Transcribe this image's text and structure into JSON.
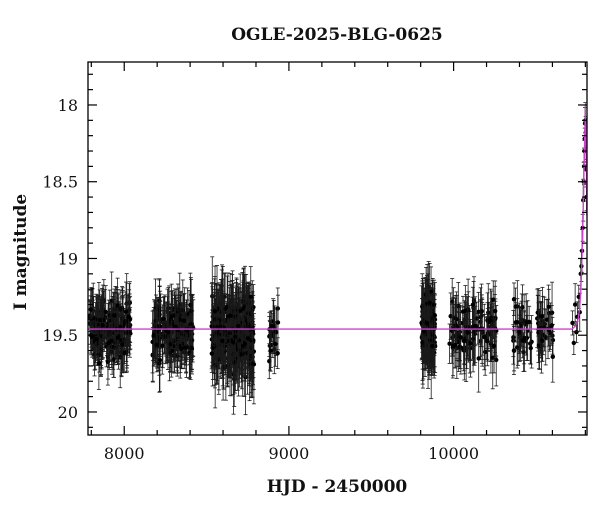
{
  "chart_data": {
    "type": "scatter",
    "title": "OGLE-2025-BLG-0625",
    "xlabel": "HJD - 2450000",
    "ylabel": "I magnitude",
    "xlim": [
      7780,
      10810
    ],
    "ylim": [
      20.15,
      17.72
    ],
    "y_inverted": true,
    "grid": false,
    "x_ticks": [
      8000,
      9000,
      10000
    ],
    "y_ticks": [
      18,
      18.5,
      19,
      19.5,
      20
    ],
    "x_tick_labels": [
      "8000",
      "9000",
      "10000"
    ],
    "y_tick_labels": [
      "18",
      "18.5",
      "19",
      "19.5",
      "20"
    ],
    "baseline_mag": 19.46,
    "model_color": "#d040d0",
    "point_color": "#000000",
    "seasons": [
      {
        "start": 7790,
        "end": 8040,
        "n": 190,
        "mean": 19.47,
        "sigma": 0.08,
        "err_min": 0.1,
        "err_max": 0.2
      },
      {
        "start": 8170,
        "end": 8420,
        "n": 190,
        "mean": 19.47,
        "sigma": 0.08,
        "err_min": 0.1,
        "err_max": 0.22
      },
      {
        "start": 8530,
        "end": 8790,
        "n": 320,
        "mean": 19.48,
        "sigma": 0.11,
        "err_min": 0.12,
        "err_max": 0.28
      },
      {
        "start": 8880,
        "end": 8935,
        "n": 22,
        "mean": 19.52,
        "sigma": 0.07,
        "err_min": 0.1,
        "err_max": 0.18
      },
      {
        "start": 9805,
        "end": 9890,
        "n": 130,
        "mean": 19.46,
        "sigma": 0.1,
        "err_min": 0.12,
        "err_max": 0.26
      },
      {
        "start": 9975,
        "end": 10260,
        "n": 110,
        "mean": 19.47,
        "sigma": 0.08,
        "err_min": 0.1,
        "err_max": 0.22
      },
      {
        "start": 10360,
        "end": 10620,
        "n": 70,
        "mean": 19.45,
        "sigma": 0.08,
        "err_min": 0.1,
        "err_max": 0.2
      }
    ],
    "event": {
      "start": 10720,
      "end": 10808,
      "points": [
        [
          10722,
          19.42
        ],
        [
          10730,
          19.55
        ],
        [
          10738,
          19.3
        ],
        [
          10746,
          19.48
        ],
        [
          10752,
          19.38
        ],
        [
          10760,
          19.25
        ],
        [
          10766,
          19.35
        ],
        [
          10772,
          19.1
        ],
        [
          10776,
          19.05
        ],
        [
          10780,
          18.95
        ],
        [
          10784,
          18.8
        ],
        [
          10787,
          18.62
        ],
        [
          10790,
          18.5
        ],
        [
          10792,
          18.4
        ],
        [
          10794,
          18.3
        ],
        [
          10796,
          18.22
        ],
        [
          10798,
          18.12
        ],
        [
          10800,
          18.1
        ],
        [
          10802,
          18.18
        ],
        [
          10804,
          18.28
        ],
        [
          10806,
          18.42
        ],
        [
          10807,
          18.6
        ]
      ],
      "model": [
        [
          10720,
          19.46
        ],
        [
          10740,
          19.44
        ],
        [
          10755,
          19.4
        ],
        [
          10765,
          19.33
        ],
        [
          10772,
          19.22
        ],
        [
          10778,
          19.05
        ],
        [
          10784,
          18.82
        ],
        [
          10789,
          18.58
        ],
        [
          10794,
          18.32
        ],
        [
          10798,
          18.16
        ],
        [
          10801,
          18.1
        ],
        [
          10804,
          18.14
        ],
        [
          10807,
          18.3
        ],
        [
          10810,
          18.55
        ]
      ]
    }
  }
}
